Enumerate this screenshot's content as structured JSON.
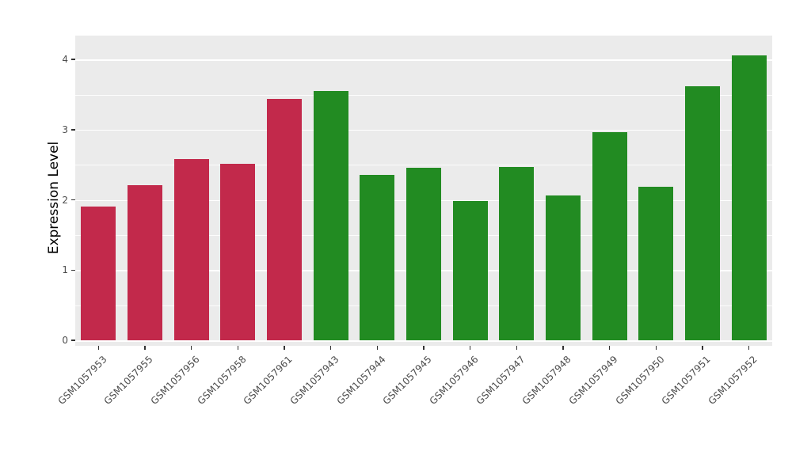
{
  "chart_data": {
    "type": "bar",
    "title": "",
    "xlabel": "",
    "ylabel": "Expression Level",
    "categories": [
      "GSM1057953",
      "GSM1057955",
      "GSM1057956",
      "GSM1057958",
      "GSM1057961",
      "GSM1057943",
      "GSM1057944",
      "GSM1057945",
      "GSM1057946",
      "GSM1057947",
      "GSM1057948",
      "GSM1057949",
      "GSM1057950",
      "GSM1057951",
      "GSM1057952"
    ],
    "values": [
      1.9,
      2.21,
      2.58,
      2.51,
      3.44,
      3.55,
      2.36,
      2.46,
      1.98,
      2.47,
      2.06,
      2.96,
      2.19,
      3.62,
      4.06
    ],
    "bar_colors": [
      "#C2294B",
      "#C2294B",
      "#C2294B",
      "#C2294B",
      "#C2294B",
      "#228B22",
      "#228B22",
      "#228B22",
      "#228B22",
      "#228B22",
      "#228B22",
      "#228B22",
      "#228B22",
      "#228B22",
      "#228B22"
    ],
    "group_colors": {
      "left_group": "#C2294B",
      "right_group": "#228B22"
    },
    "y_ticks": [
      0,
      1,
      2,
      3,
      4
    ],
    "y_tick_labels": [
      "0",
      "1",
      "2",
      "3",
      "4"
    ],
    "y_minor_ticks": [
      0.5,
      1.5,
      2.5,
      3.5
    ],
    "ylim": [
      0,
      4.34
    ],
    "grid": true,
    "legend": "none",
    "panel_background": "#EBEBEB",
    "gridline_color": "#FFFFFF",
    "tick_text_color": "#4D4D4D",
    "axis_title_color": "#000000"
  }
}
